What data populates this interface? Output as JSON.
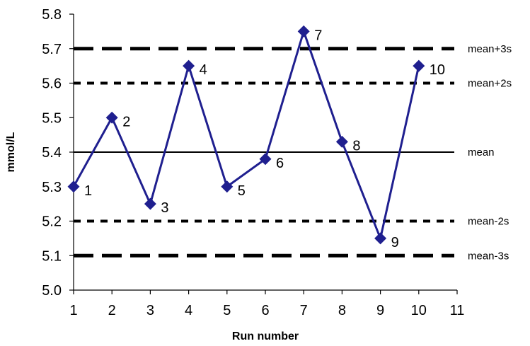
{
  "chart_data": {
    "type": "line",
    "title": "",
    "xlabel": "Run number",
    "ylabel": "mmol/L",
    "xlim": [
      1,
      11
    ],
    "ylim": [
      5.0,
      5.8
    ],
    "x_ticks": [
      "1",
      "2",
      "3",
      "4",
      "5",
      "6",
      "7",
      "8",
      "9",
      "10",
      "11"
    ],
    "y_ticks": [
      "5.0",
      "5.1",
      "5.2",
      "5.3",
      "5.4",
      "5.5",
      "5.6",
      "5.7",
      "5.8"
    ],
    "grid": false,
    "series": [
      {
        "color": "#1f1f8f",
        "marker": "diamond",
        "points": [
          {
            "x": 1,
            "y": 5.3,
            "label": "1"
          },
          {
            "x": 2,
            "y": 5.5,
            "label": "2"
          },
          {
            "x": 3,
            "y": 5.25,
            "label": "3"
          },
          {
            "x": 4,
            "y": 5.65,
            "label": "4"
          },
          {
            "x": 5,
            "y": 5.3,
            "label": "5"
          },
          {
            "x": 6,
            "y": 5.38,
            "label": "6"
          },
          {
            "x": 7,
            "y": 5.75,
            "label": "7"
          },
          {
            "x": 8,
            "y": 5.43,
            "label": "8"
          },
          {
            "x": 9,
            "y": 5.15,
            "label": "9"
          },
          {
            "x": 10,
            "y": 5.65,
            "label": "10"
          }
        ]
      }
    ],
    "reference_lines": [
      {
        "label": "mean+3s",
        "y": 5.7,
        "style": "long-dash"
      },
      {
        "label": "mean+2s",
        "y": 5.6,
        "style": "short-dash"
      },
      {
        "label": "mean",
        "y": 5.4,
        "style": "solid"
      },
      {
        "label": "mean-2s",
        "y": 5.2,
        "style": "short-dash"
      },
      {
        "label": "mean-3s",
        "y": 5.1,
        "style": "long-dash"
      }
    ]
  }
}
